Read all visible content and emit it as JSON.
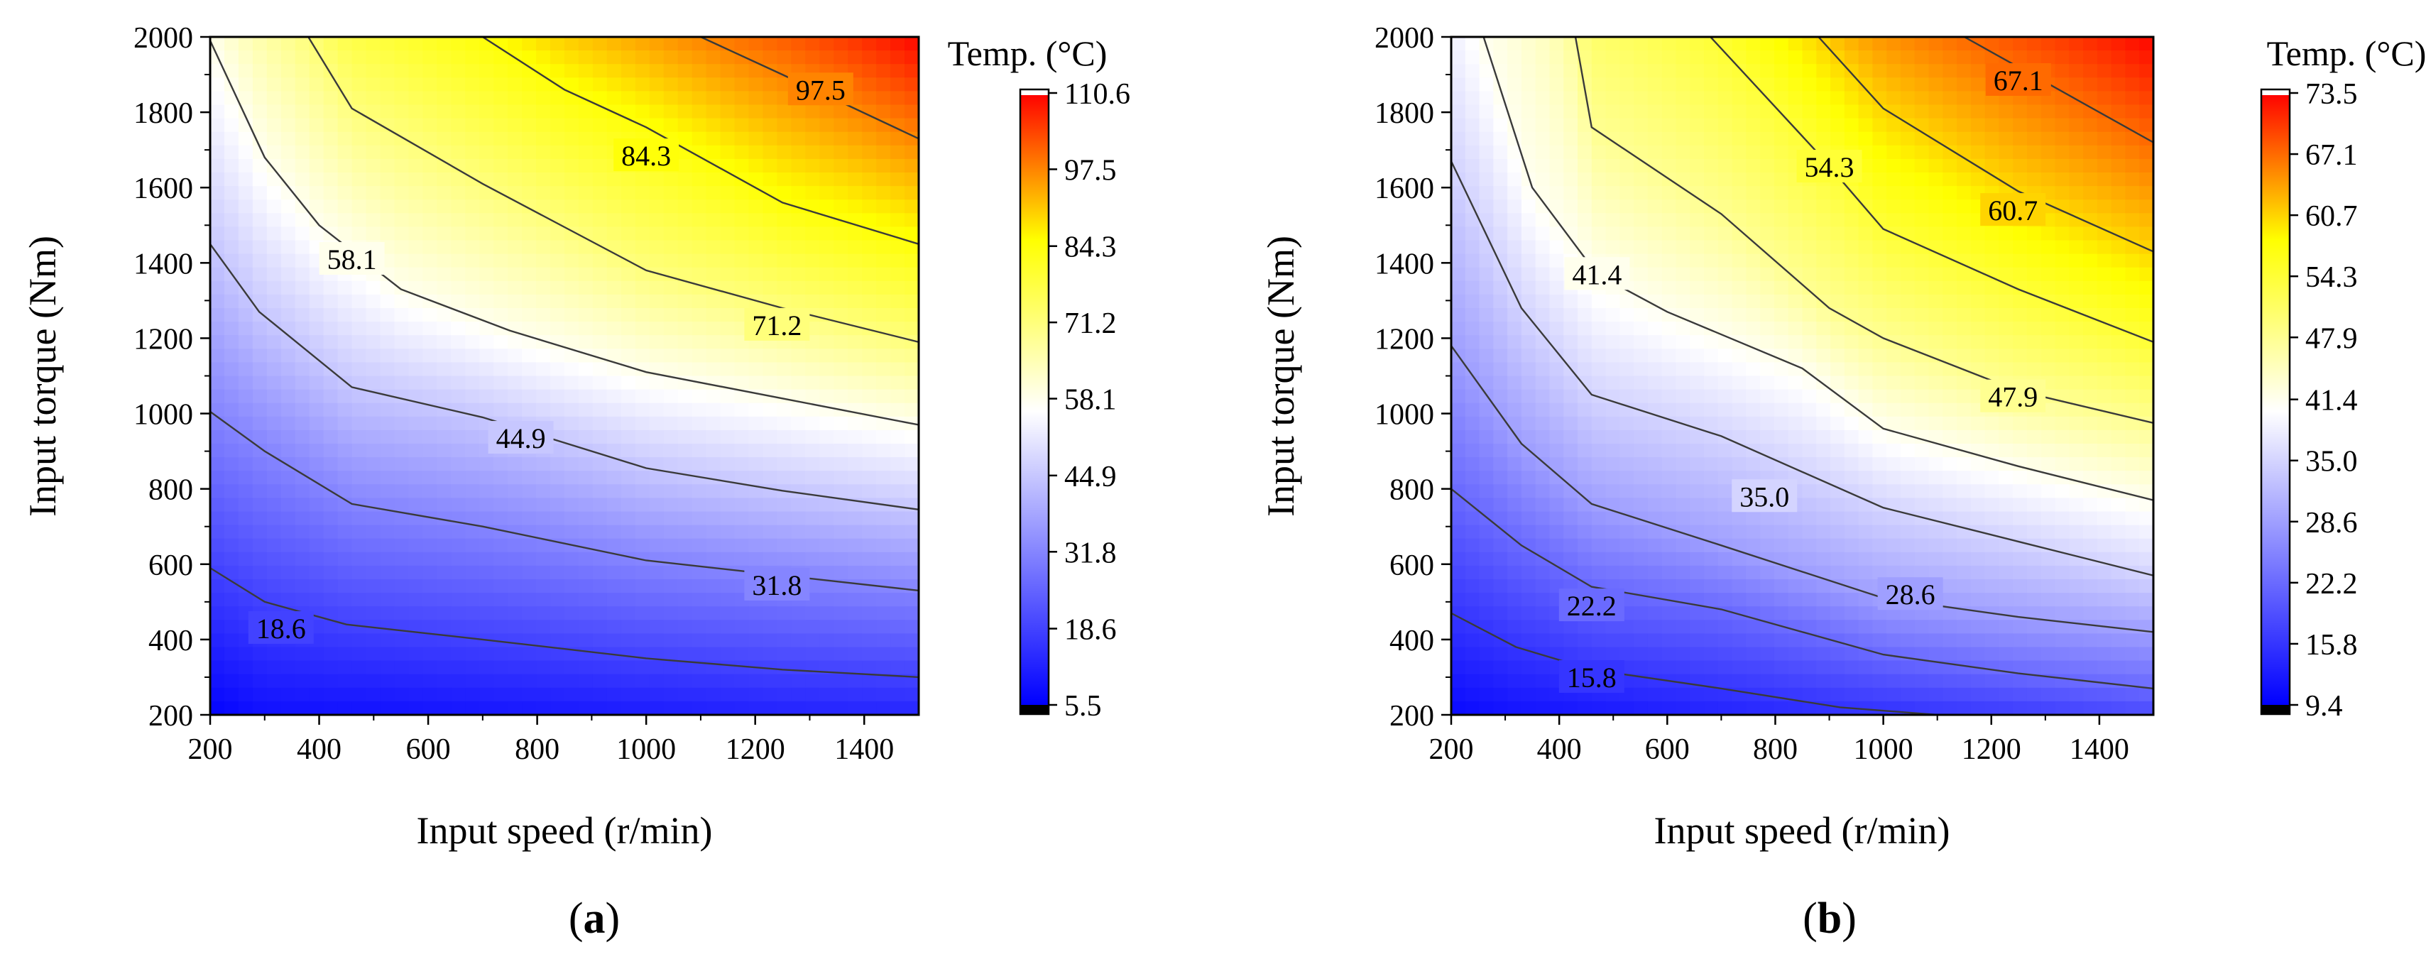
{
  "chart_data": [
    {
      "type": "heatmap",
      "subtype": "filled-contour",
      "panel_label": "a",
      "xlabel": "Input speed (r/min)",
      "ylabel": "Input torque (Nm)",
      "xlim": [
        200,
        1500
      ],
      "ylim": [
        200,
        2000
      ],
      "xticks": [
        200,
        400,
        600,
        800,
        1000,
        1200,
        1400
      ],
      "yticks": [
        200,
        400,
        600,
        800,
        1000,
        1200,
        1400,
        1600,
        1800,
        2000
      ],
      "colorbar": {
        "title": "Temp. (°C)",
        "min": 5.5,
        "max": 110.6,
        "ticks": [
          5.5,
          18.6,
          31.8,
          44.9,
          58.1,
          71.2,
          84.3,
          97.5,
          110.6
        ],
        "tick_labels": [
          "5.5",
          "18.6",
          "31.8",
          "44.9",
          "58.1",
          "71.2",
          "84.3",
          "97.5",
          "110.6"
        ],
        "colors": [
          "#0000ff",
          "#ffffff",
          "#ffff00",
          "#ff0000"
        ]
      },
      "contours": [
        {
          "level": 18.6,
          "label": "18.6",
          "label_at": [
            330,
            430
          ],
          "points": [
            [
              200,
              590
            ],
            [
              300,
              500
            ],
            [
              450,
              440
            ],
            [
              700,
              400
            ],
            [
              1000,
              350
            ],
            [
              1250,
              320
            ],
            [
              1500,
              300
            ]
          ]
        },
        {
          "level": 31.8,
          "label": "31.8",
          "label_at": [
            1240,
            545
          ],
          "points": [
            [
              200,
              1005
            ],
            [
              300,
              900
            ],
            [
              460,
              760
            ],
            [
              700,
              700
            ],
            [
              1000,
              610
            ],
            [
              1250,
              570
            ],
            [
              1500,
              530
            ]
          ]
        },
        {
          "level": 44.9,
          "label": "44.9",
          "label_at": [
            770,
            935
          ],
          "points": [
            [
              200,
              1450
            ],
            [
              290,
              1270
            ],
            [
              460,
              1070
            ],
            [
              700,
              990
            ],
            [
              1000,
              855
            ],
            [
              1250,
              795
            ],
            [
              1500,
              745
            ]
          ]
        },
        {
          "level": 58.1,
          "label": "58.1",
          "label_at": [
            460,
            1410
          ],
          "points": [
            [
              200,
              1990
            ],
            [
              300,
              1680
            ],
            [
              400,
              1500
            ],
            [
              550,
              1330
            ],
            [
              750,
              1220
            ],
            [
              1000,
              1110
            ],
            [
              1250,
              1040
            ],
            [
              1500,
              970
            ]
          ]
        },
        {
          "level": 71.2,
          "label": "71.2",
          "label_at": [
            1240,
            1235
          ],
          "points": [
            [
              380,
              2000
            ],
            [
              460,
              1810
            ],
            [
              700,
              1610
            ],
            [
              1000,
              1380
            ],
            [
              1250,
              1280
            ],
            [
              1500,
              1190
            ]
          ]
        },
        {
          "level": 84.3,
          "label": "84.3",
          "label_at": [
            1000,
            1685
          ],
          "points": [
            [
              700,
              2000
            ],
            [
              850,
              1860
            ],
            [
              1000,
              1760
            ],
            [
              1250,
              1560
            ],
            [
              1500,
              1450
            ]
          ]
        },
        {
          "level": 97.5,
          "label": "97.5",
          "label_at": [
            1320,
            1860
          ],
          "points": [
            [
              1100,
              2000
            ],
            [
              1250,
              1900
            ],
            [
              1500,
              1730
            ]
          ]
        }
      ]
    },
    {
      "type": "heatmap",
      "subtype": "filled-contour",
      "panel_label": "b",
      "xlabel": "Input speed (r/min)",
      "ylabel": "Input torque (Nm)",
      "xlim": [
        200,
        1500
      ],
      "ylim": [
        200,
        2000
      ],
      "xticks": [
        200,
        400,
        600,
        800,
        1000,
        1200,
        1400
      ],
      "yticks": [
        200,
        400,
        600,
        800,
        1000,
        1200,
        1400,
        1600,
        1800,
        2000
      ],
      "colorbar": {
        "title": "Temp. (°C)",
        "min": 9.4,
        "max": 73.5,
        "ticks": [
          9.4,
          15.8,
          22.2,
          28.6,
          35.0,
          41.4,
          47.9,
          54.3,
          60.7,
          67.1,
          73.5
        ],
        "tick_labels": [
          "9.4",
          "15.8",
          "22.2",
          "28.6",
          "35.0",
          "41.4",
          "47.9",
          "54.3",
          "60.7",
          "67.1",
          "73.5"
        ],
        "colors": [
          "#0000ff",
          "#ffffff",
          "#ffff00",
          "#ff0000"
        ]
      },
      "contours": [
        {
          "level": 15.8,
          "label": "15.8",
          "label_at": [
            460,
            300
          ],
          "points": [
            [
              200,
              470
            ],
            [
              320,
              380
            ],
            [
              460,
              320
            ],
            [
              700,
              270
            ],
            [
              920,
              220
            ],
            [
              1100,
              200
            ]
          ]
        },
        {
          "level": 22.2,
          "label": "22.2",
          "label_at": [
            460,
            490
          ],
          "points": [
            [
              200,
              800
            ],
            [
              330,
              650
            ],
            [
              460,
              540
            ],
            [
              700,
              480
            ],
            [
              1000,
              360
            ],
            [
              1250,
              310
            ],
            [
              1500,
              270
            ]
          ]
        },
        {
          "level": 28.6,
          "label": "28.6",
          "label_at": [
            1050,
            520
          ],
          "points": [
            [
              200,
              1180
            ],
            [
              330,
              920
            ],
            [
              460,
              760
            ],
            [
              700,
              650
            ],
            [
              1000,
              510
            ],
            [
              1250,
              460
            ],
            [
              1500,
              420
            ]
          ]
        },
        {
          "level": 35.0,
          "label": "35.0",
          "label_at": [
            780,
            780
          ],
          "points": [
            [
              200,
              1670
            ],
            [
              330,
              1280
            ],
            [
              460,
              1050
            ],
            [
              700,
              940
            ],
            [
              1000,
              750
            ],
            [
              1250,
              660
            ],
            [
              1500,
              570
            ]
          ]
        },
        {
          "level": 41.4,
          "label": "41.4",
          "label_at": [
            470,
            1370
          ],
          "points": [
            [
              260,
              2000
            ],
            [
              350,
              1600
            ],
            [
              470,
              1370
            ],
            [
              600,
              1270
            ],
            [
              850,
              1120
            ],
            [
              1000,
              960
            ],
            [
              1250,
              860
            ],
            [
              1500,
              770
            ]
          ]
        },
        {
          "level": 47.9,
          "label": "47.9",
          "label_at": [
            1240,
            1045
          ],
          "points": [
            [
              430,
              2000
            ],
            [
              460,
              1760
            ],
            [
              700,
              1530
            ],
            [
              900,
              1280
            ],
            [
              1000,
              1200
            ],
            [
              1250,
              1060
            ],
            [
              1500,
              975
            ]
          ]
        },
        {
          "level": 54.3,
          "label": "54.3",
          "label_at": [
            900,
            1655
          ],
          "points": [
            [
              680,
              2000
            ],
            [
              880,
              1690
            ],
            [
              1000,
              1490
            ],
            [
              1250,
              1330
            ],
            [
              1500,
              1190
            ]
          ]
        },
        {
          "level": 60.7,
          "label": "60.7",
          "label_at": [
            1240,
            1540
          ],
          "points": [
            [
              880,
              2000
            ],
            [
              1000,
              1810
            ],
            [
              1250,
              1590
            ],
            [
              1500,
              1430
            ]
          ]
        },
        {
          "level": 67.1,
          "label": "67.1",
          "label_at": [
            1250,
            1885
          ],
          "points": [
            [
              1150,
              2000
            ],
            [
              1250,
              1920
            ],
            [
              1500,
              1720
            ]
          ]
        }
      ]
    }
  ]
}
